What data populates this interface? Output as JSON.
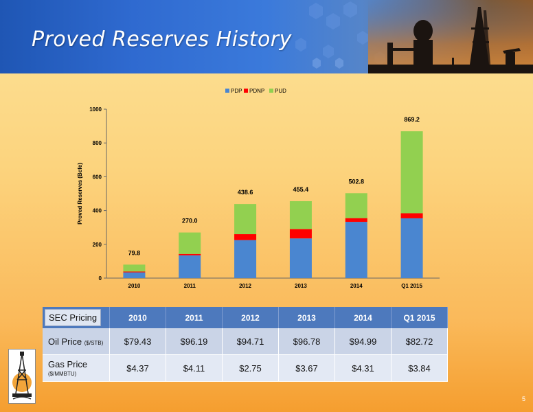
{
  "slide": {
    "title": "Proved Reserves History",
    "page_number": "5"
  },
  "chart_data": {
    "type": "bar",
    "stacked": true,
    "categories": [
      "2010",
      "2011",
      "2012",
      "2013",
      "2014",
      "Q1 2015"
    ],
    "series": [
      {
        "name": "PDP",
        "color": "#4a86d0",
        "values": [
          34,
          135,
          225,
          235,
          333,
          354
        ]
      },
      {
        "name": "PDNP",
        "color": "#ff0000",
        "values": [
          5,
          8,
          35,
          55,
          22,
          30
        ]
      },
      {
        "name": "PUD",
        "color": "#92d050",
        "values": [
          40.8,
          127.0,
          178.6,
          165.4,
          147.8,
          485.2
        ]
      }
    ],
    "totals": [
      "79.8",
      "270.0",
      "438.6",
      "455.4",
      "502.8",
      "869.2"
    ],
    "ylabel": "Proved Reserves (Bcfe)",
    "xlabel": "",
    "ylim": [
      0,
      1000
    ],
    "yticks": [
      "0",
      "200",
      "400",
      "600",
      "800",
      "1000"
    ],
    "legend_position": "top",
    "grid": false
  },
  "pricing_table": {
    "corner_label": "SEC Pricing",
    "columns": [
      "2010",
      "2011",
      "2012",
      "2013",
      "2014",
      "Q1 2015"
    ],
    "rows": [
      {
        "label": "Oil Price",
        "unit": "($/STB)",
        "values": [
          "$79.43",
          "$96.19",
          "$94.71",
          "$96.78",
          "$94.99",
          "$82.72"
        ]
      },
      {
        "label": "Gas Price",
        "unit": "($/MMBTU)",
        "values": [
          "$4.37",
          "$4.11",
          "$2.75",
          "$3.67",
          "$4.31",
          "$3.84"
        ]
      }
    ]
  },
  "icons": {
    "banner_art": "oil-rig-silhouette-icon",
    "logo": "derrick-logo-icon"
  }
}
